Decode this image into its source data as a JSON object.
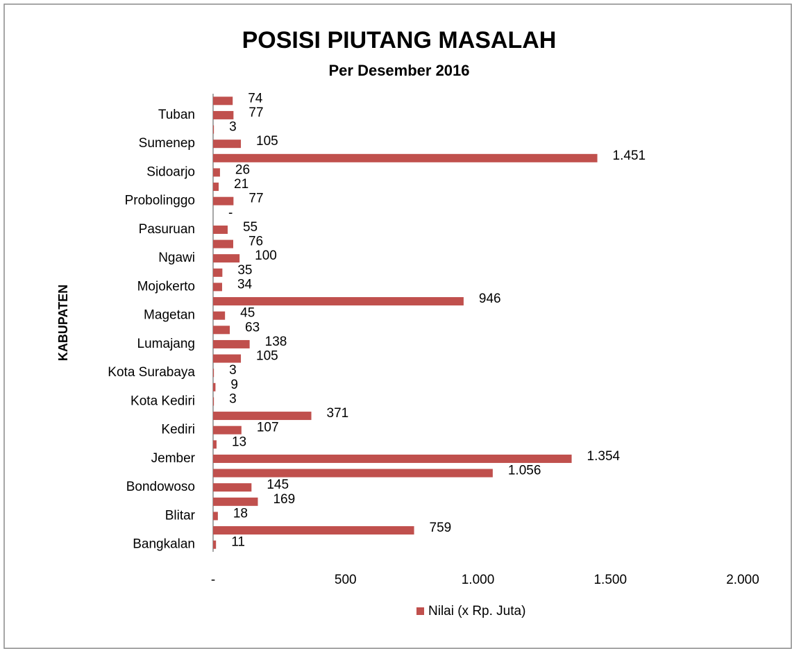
{
  "chart_data": {
    "type": "bar",
    "orientation": "horizontal",
    "title": "POSISI PIUTANG MASALAH",
    "subtitle": "Per Desember 2016",
    "y_label": "KABUPATEN",
    "categories": [
      "Bangkalan",
      null,
      "Blitar",
      null,
      "Bondowoso",
      null,
      "Jember",
      null,
      "Kediri",
      null,
      "Kota Kediri",
      null,
      "Kota Surabaya",
      null,
      "Lumajang",
      null,
      "Magetan",
      null,
      "Mojokerto",
      null,
      "Ngawi",
      null,
      "Pasuruan",
      null,
      "Probolinggo",
      null,
      "Sidoarjo",
      null,
      "Sumenep",
      null,
      "Tuban",
      null
    ],
    "series": [
      {
        "name": "Nilai (x Rp. Juta)",
        "color": "#c0504d",
        "values": [
          11,
          759,
          18,
          169,
          145,
          1056,
          1354,
          13,
          107,
          371,
          3,
          9,
          3,
          105,
          138,
          63,
          45,
          946,
          34,
          35,
          100,
          76,
          55,
          0,
          77,
          21,
          26,
          1451,
          105,
          3,
          77,
          74
        ],
        "value_labels": [
          "11",
          "759",
          "18",
          "169",
          "145",
          "1.056",
          "1.354",
          "13",
          "107",
          "371",
          "3",
          "9",
          "3",
          "105",
          "138",
          "63",
          "45",
          "946",
          "34",
          "35",
          "100",
          "76",
          "55",
          "-",
          "77",
          "21",
          "26",
          "1.451",
          "105",
          "3",
          "77",
          "74"
        ]
      }
    ],
    "xlim": [
      0,
      2000
    ],
    "xticks": [
      {
        "value": 0,
        "label": "-"
      },
      500,
      {
        "value": 1000,
        "label": "1.000"
      },
      {
        "value": 1500,
        "label": "1.500"
      },
      {
        "value": 2000,
        "label": "2.000"
      }
    ],
    "legend": "bottom"
  }
}
